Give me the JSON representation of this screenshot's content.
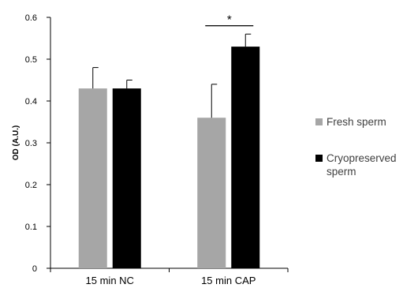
{
  "chart_data": {
    "type": "bar",
    "categories": [
      "15 min NC",
      "15 min CAP"
    ],
    "series": [
      {
        "name": "Fresh sperm",
        "values": [
          0.43,
          0.36
        ],
        "errors": [
          0.05,
          0.08
        ],
        "color": "#a6a6a6"
      },
      {
        "name": "Cryopreserved sperm",
        "legend_lines": [
          "Cryopreserved",
          "sperm"
        ],
        "values": [
          0.43,
          0.53
        ],
        "errors": [
          0.02,
          0.03
        ],
        "color": "#000000"
      }
    ],
    "ylabel": "OD (A.U.)",
    "ylim": [
      0,
      0.6
    ],
    "yticks": [
      0,
      0.1,
      0.2,
      0.3,
      0.4,
      0.5,
      0.6
    ],
    "ytick_labels": [
      "0",
      "0.1",
      "0.2",
      "0.3",
      "0.4",
      "0.5",
      "0.6"
    ],
    "grid": false,
    "legend_position": "right",
    "annotations": [
      {
        "text": "*",
        "category_index": 1,
        "y": 0.58,
        "meaning": "significance bracket between bars"
      }
    ]
  }
}
